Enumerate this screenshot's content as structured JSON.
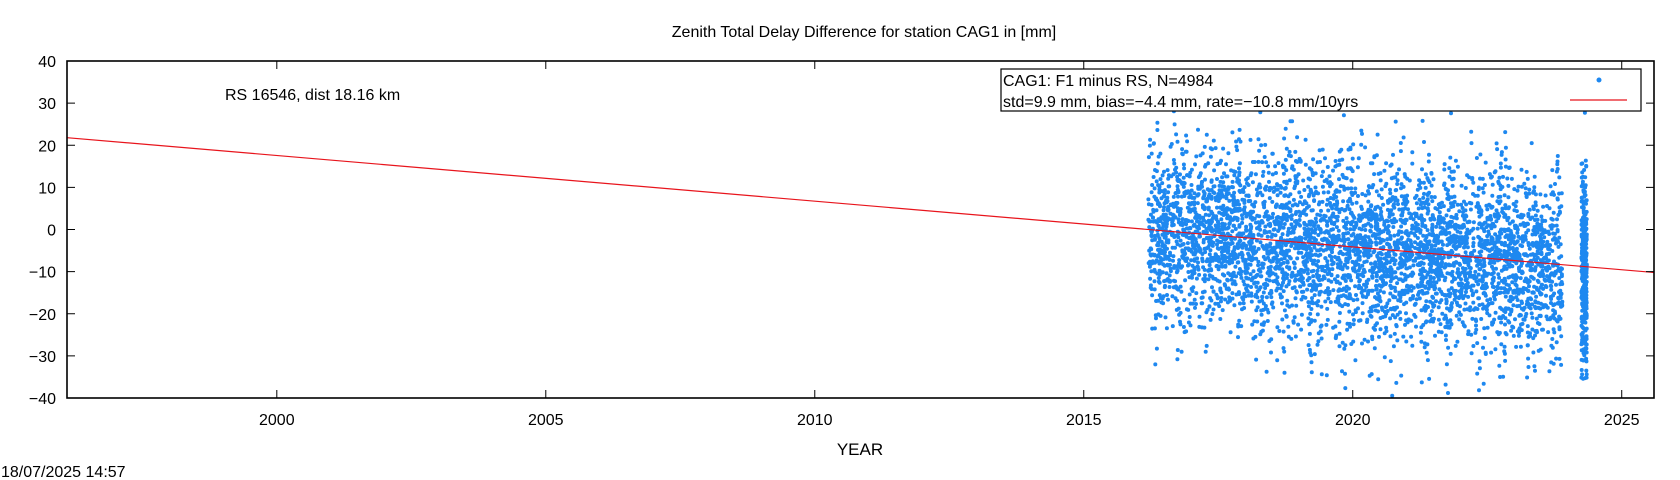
{
  "chart_data": {
    "type": "scatter",
    "title": "Zenith Total Delay Difference for station CAG1 in [mm]",
    "xlabel": "YEAR",
    "ylabel": "",
    "xlim": [
      1996.1,
      2025.6
    ],
    "ylim": [
      -40,
      40
    ],
    "x_ticks": [
      2000,
      2005,
      2010,
      2015,
      2020,
      2025
    ],
    "y_ticks": [
      -40,
      -30,
      -20,
      -10,
      0,
      10,
      20,
      30,
      40
    ],
    "grid": false,
    "legend_position": "top-right",
    "annotation": "RS 16546, dist 18.16 km",
    "series": [
      {
        "name": "CAG1: F1 minus RS, N=4984",
        "kind": "points",
        "color": "#1E88F0",
        "count": 4984,
        "time_range": [
          2016.2,
          2024.5
        ],
        "scatter_std": 9.9
      },
      {
        "name": "std=9.9 mm, bias=−4.4 mm, rate=−10.8 mm/10yrs",
        "kind": "trend-line",
        "color": "#E8141C",
        "x": [
          1996.1,
          2025.6
        ],
        "y": [
          21.8,
          -10.2
        ]
      }
    ],
    "footer_timestamp": "18/07/2025 14:57"
  }
}
